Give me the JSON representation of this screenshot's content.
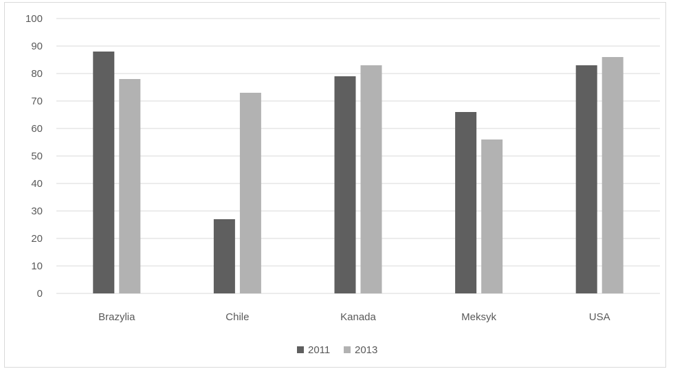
{
  "chart_data": {
    "type": "bar",
    "categories": [
      "Brazylia",
      "Chile",
      "Kanada",
      "Meksyk",
      "USA"
    ],
    "series": [
      {
        "name": "2011",
        "color": "#5f5f5f",
        "values": [
          88,
          27,
          79,
          66,
          83
        ]
      },
      {
        "name": "2013",
        "color": "#b2b2b2",
        "values": [
          78,
          73,
          83,
          56,
          86
        ]
      }
    ],
    "ylim": [
      0,
      100
    ],
    "yticks": [
      0,
      10,
      20,
      30,
      40,
      50,
      60,
      70,
      80,
      90,
      100
    ],
    "grid": true,
    "legend_position": "bottom",
    "title": "",
    "xlabel": "",
    "ylabel": ""
  }
}
